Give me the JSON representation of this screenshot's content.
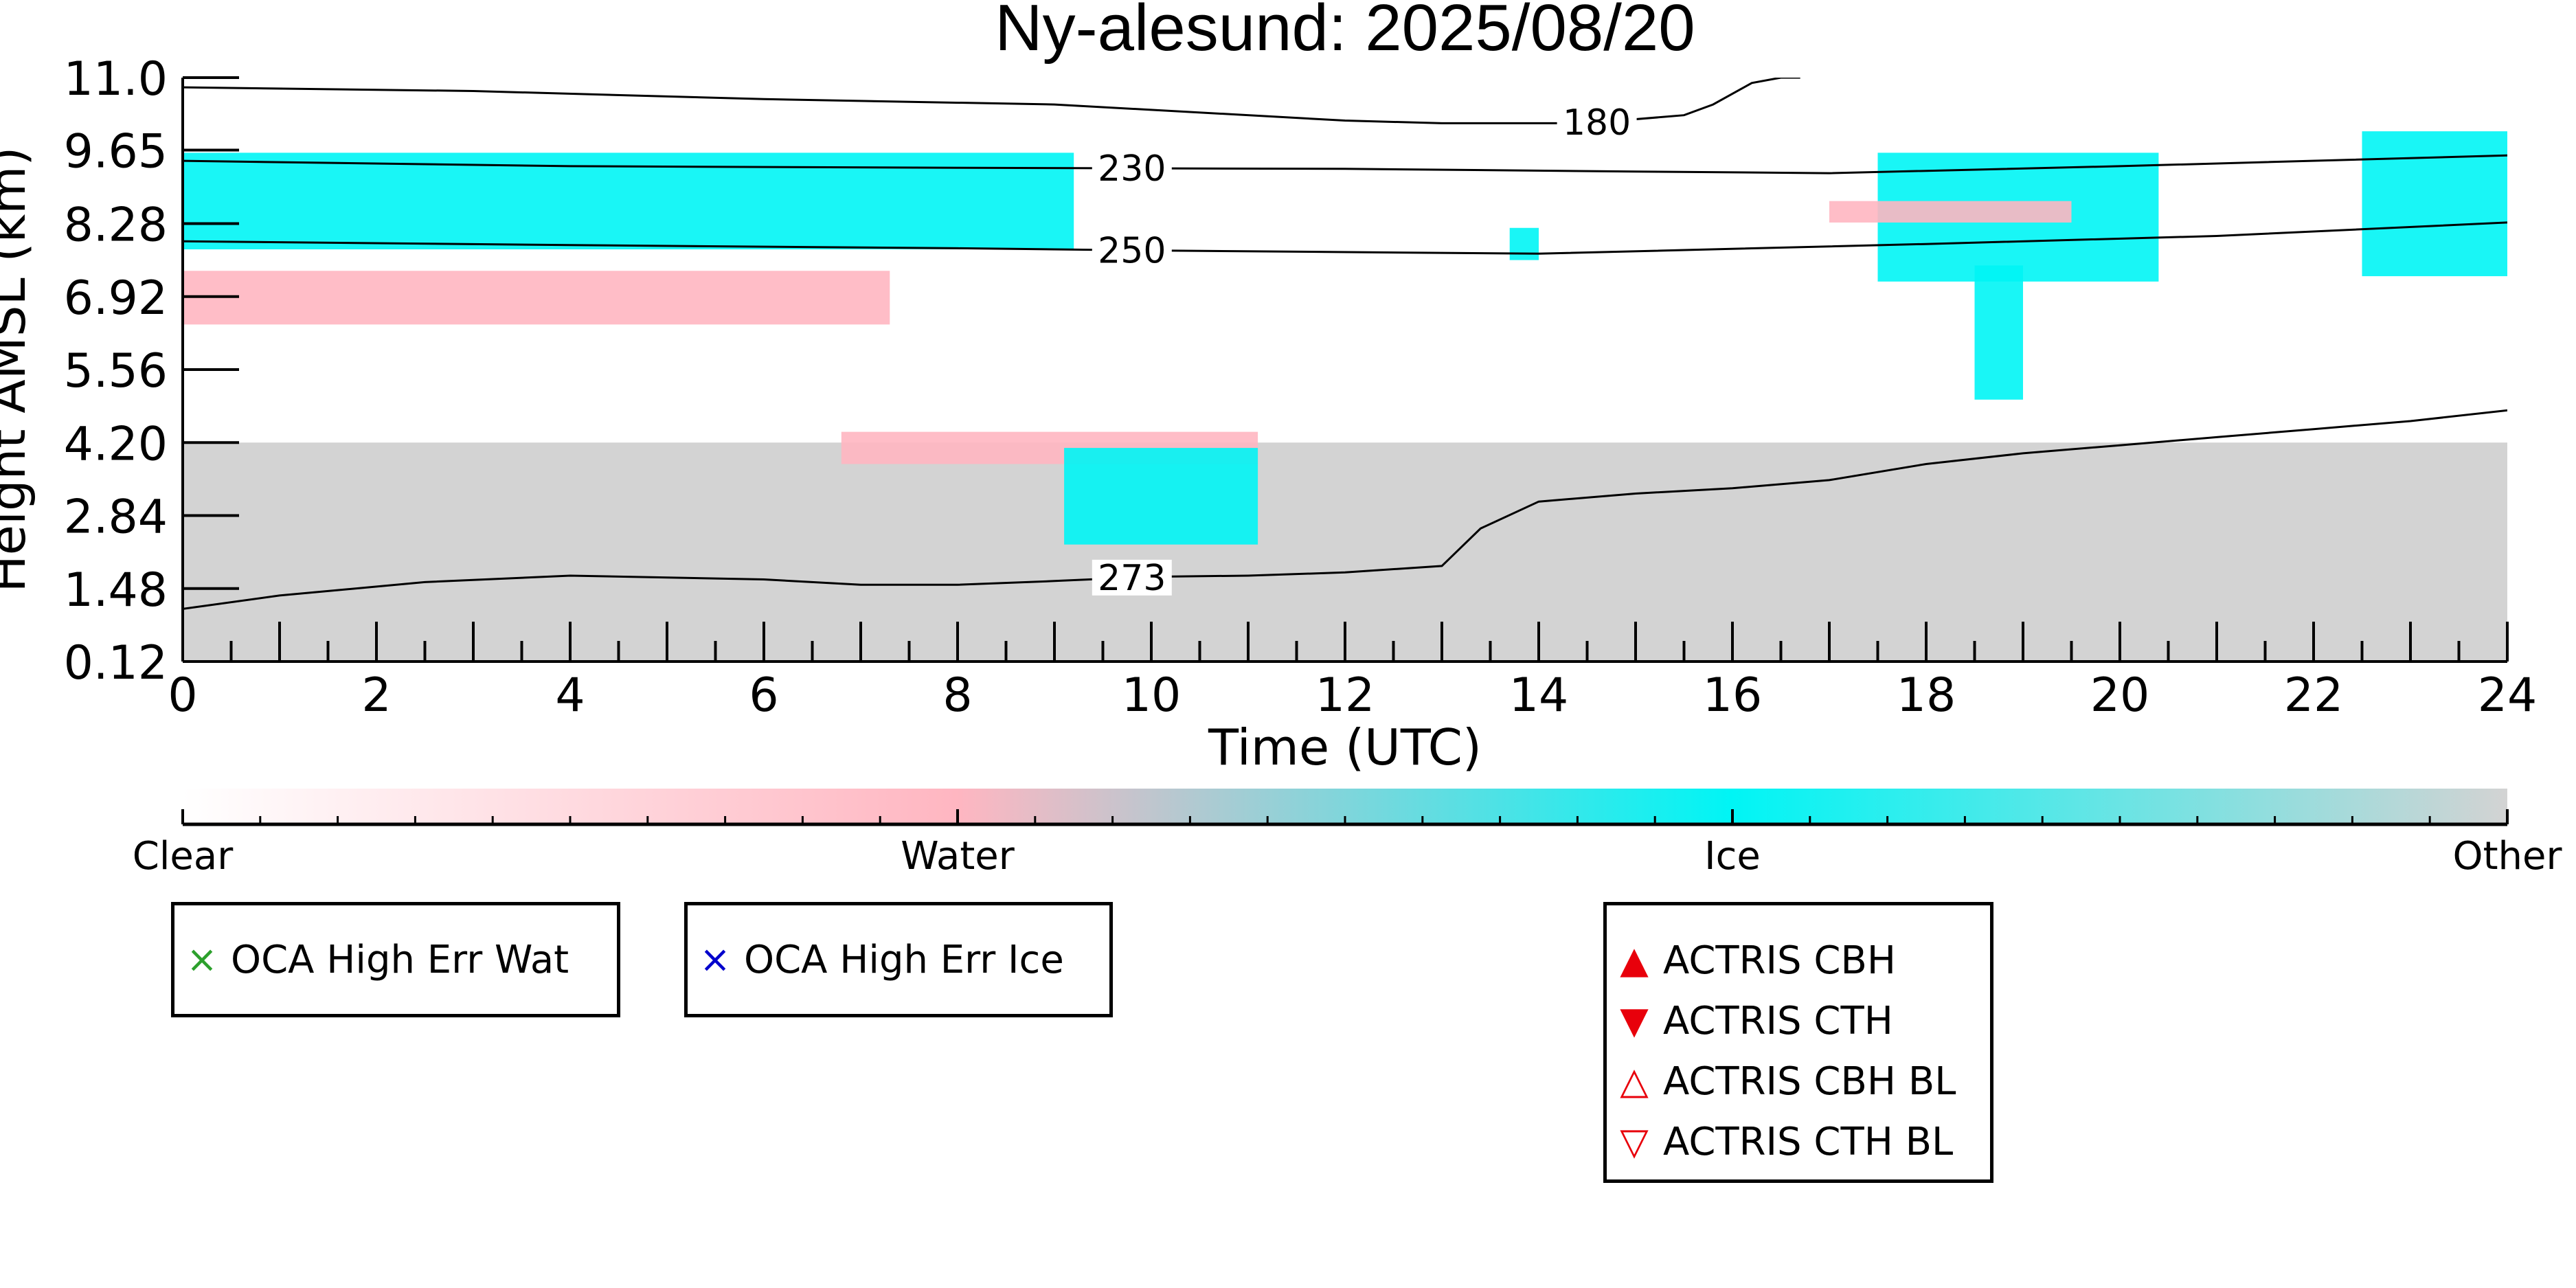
{
  "chart_data": {
    "type": "heatmap",
    "title": "Ny-alesund: 2025/08/20",
    "xlabel": "Time (UTC)",
    "ylabel": "Height AMSL (km)",
    "xlim": [
      0,
      24
    ],
    "ylim": [
      0.12,
      11.0
    ],
    "x_ticks": [
      "0",
      "2",
      "4",
      "6",
      "8",
      "10",
      "12",
      "14",
      "16",
      "18",
      "20",
      "22",
      "24"
    ],
    "x_tick_values": [
      0,
      2,
      4,
      6,
      8,
      10,
      12,
      14,
      16,
      18,
      20,
      22,
      24
    ],
    "y_ticks": [
      "0.12",
      "1.48",
      "2.84",
      "4.20",
      "5.56",
      "6.92",
      "8.28",
      "9.65",
      "11.0"
    ],
    "y_tick_values": [
      0.12,
      1.48,
      2.84,
      4.2,
      5.56,
      6.92,
      8.28,
      9.65,
      11.0
    ],
    "classes": [
      "Clear",
      "Water",
      "Ice",
      "Other"
    ],
    "class_colors": {
      "Clear": "#ffffff",
      "Water": "#ffb6c1",
      "Ice": "#00f5f5",
      "Other": "#d3d3d3"
    },
    "colorbar_labels": [
      "Clear",
      "Water",
      "Ice",
      "Other"
    ],
    "isotherms": [
      {
        "label": "230",
        "label_x": 9.8,
        "points": [
          [
            0,
            9.45
          ],
          [
            4,
            9.35
          ],
          [
            8,
            9.32
          ],
          [
            12,
            9.3
          ],
          [
            15,
            9.25
          ],
          [
            17,
            9.22
          ],
          [
            20,
            9.35
          ],
          [
            24,
            9.55
          ]
        ]
      },
      {
        "label": "250",
        "label_x": 9.8,
        "points": [
          [
            0,
            7.95
          ],
          [
            4,
            7.88
          ],
          [
            8,
            7.82
          ],
          [
            10,
            7.78
          ],
          [
            14,
            7.72
          ],
          [
            18,
            7.9
          ],
          [
            21,
            8.05
          ],
          [
            24,
            8.3
          ]
        ]
      },
      {
        "label": "273",
        "label_x": 9.8,
        "points": [
          [
            0,
            1.1
          ],
          [
            1,
            1.35
          ],
          [
            2.5,
            1.6
          ],
          [
            4,
            1.72
          ],
          [
            6,
            1.65
          ],
          [
            7,
            1.55
          ],
          [
            8,
            1.55
          ],
          [
            9,
            1.62
          ],
          [
            10,
            1.7
          ],
          [
            11,
            1.72
          ],
          [
            12,
            1.78
          ],
          [
            13,
            1.9
          ],
          [
            13.4,
            2.6
          ],
          [
            14,
            3.1
          ],
          [
            15,
            3.25
          ],
          [
            16,
            3.35
          ],
          [
            17,
            3.5
          ],
          [
            18,
            3.8
          ],
          [
            19,
            4.0
          ],
          [
            20,
            4.15
          ],
          [
            21,
            4.3
          ],
          [
            22,
            4.45
          ],
          [
            23,
            4.6
          ],
          [
            24,
            4.8
          ]
        ]
      },
      {
        "label": "180",
        "label_x": 14.6,
        "points": [
          [
            0,
            10.82
          ],
          [
            3,
            10.75
          ],
          [
            6,
            10.6
          ],
          [
            9,
            10.5
          ],
          [
            12,
            10.2
          ],
          [
            13,
            10.15
          ],
          [
            14.5,
            10.15
          ],
          [
            15.5,
            10.3
          ],
          [
            15.8,
            10.5
          ],
          [
            16.2,
            10.9
          ],
          [
            16.5,
            11.0
          ],
          [
            16.7,
            11.0
          ]
        ]
      }
    ],
    "regions": [
      {
        "class": "Other",
        "x0": 0,
        "x1": 24,
        "y0": 0.12,
        "y1": 4.2
      },
      {
        "class": "Ice",
        "x0": 0,
        "x1": 9.2,
        "y0": 7.8,
        "y1": 9.6
      },
      {
        "class": "Water",
        "x0": 0,
        "x1": 7.3,
        "y0": 6.4,
        "y1": 7.4
      },
      {
        "class": "Water",
        "x0": 6.8,
        "x1": 11.1,
        "y0": 3.8,
        "y1": 4.4
      },
      {
        "class": "Ice",
        "x0": 9.1,
        "x1": 11.1,
        "y0": 2.3,
        "y1": 4.1
      },
      {
        "class": "Ice",
        "x0": 17.5,
        "x1": 20.4,
        "y0": 7.2,
        "y1": 9.6
      },
      {
        "class": "Ice",
        "x0": 18.5,
        "x1": 19.0,
        "y0": 5.0,
        "y1": 7.5
      },
      {
        "class": "Water",
        "x0": 17.0,
        "x1": 19.5,
        "y0": 8.3,
        "y1": 8.7
      },
      {
        "class": "Ice",
        "x0": 22.5,
        "x1": 24,
        "y0": 7.3,
        "y1": 10.0
      },
      {
        "class": "Ice",
        "x0": 13.7,
        "x1": 14.0,
        "y0": 7.6,
        "y1": 8.2
      }
    ],
    "legends": [
      {
        "entries": [
          {
            "marker": "×",
            "color": "#2ca02c",
            "label": "OCA High Err Wat"
          }
        ]
      },
      {
        "entries": [
          {
            "marker": "×",
            "color": "#0000cc",
            "label": "OCA High Err Ice"
          }
        ]
      },
      {
        "entries": [
          {
            "marker": "▲",
            "color": "#e8000b",
            "label": "ACTRIS CBH"
          },
          {
            "marker": "▼",
            "color": "#e8000b",
            "label": "ACTRIS CTH"
          },
          {
            "marker": "△",
            "color": "#e8000b",
            "label": "ACTRIS CBH BL"
          },
          {
            "marker": "▽",
            "color": "#e8000b",
            "label": "ACTRIS CTH BL"
          }
        ]
      }
    ]
  }
}
